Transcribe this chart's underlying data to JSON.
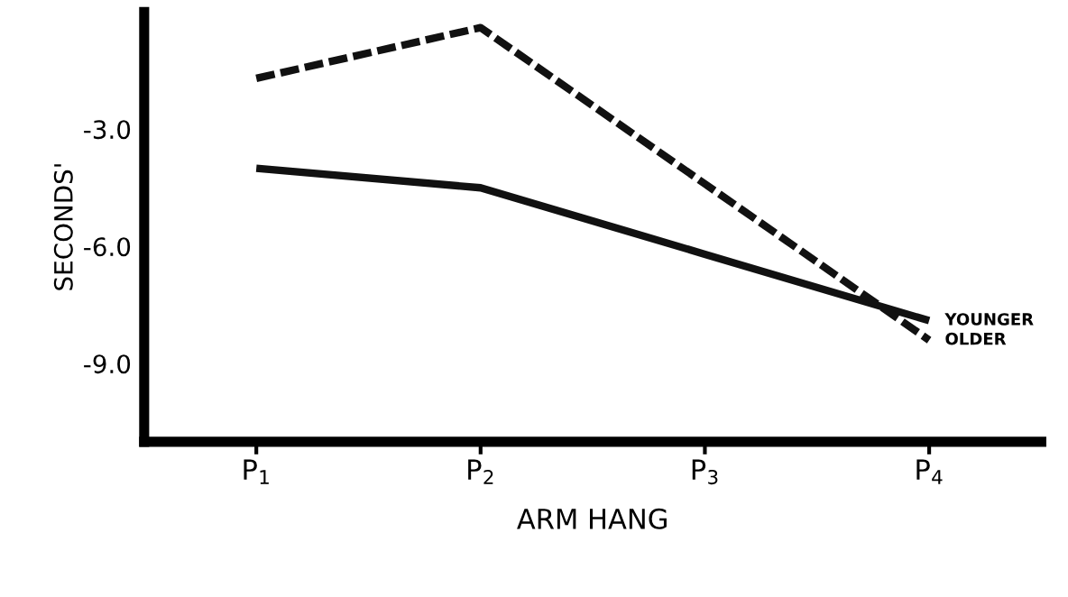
{
  "chart_data": {
    "type": "line",
    "xlabel": "ARM HANG",
    "ylabel": "SECONDS'",
    "categories": [
      "P$_{1}$",
      "P$_{2}$",
      "P$_{3}$",
      "P$_{4}$"
    ],
    "series": [
      {
        "name": "YOUNGER",
        "color": "#111111",
        "line_style": "solid",
        "values": [
          -4.0,
          -4.5,
          -6.2,
          -7.9
        ]
      },
      {
        "name": "OLDER",
        "color": "#111111",
        "line_style": "dashed",
        "values": [
          -1.7,
          -0.4,
          -4.4,
          -8.4
        ]
      }
    ],
    "ylim": [
      -11.0,
      0.0
    ],
    "yticks": [
      {
        "value": -3.0,
        "label": "-3.0"
      },
      {
        "value": -6.0,
        "label": "-6.0"
      },
      {
        "value": -9.0,
        "label": "-9.0"
      }
    ],
    "marker": "none",
    "grid": false,
    "legend": false
  }
}
